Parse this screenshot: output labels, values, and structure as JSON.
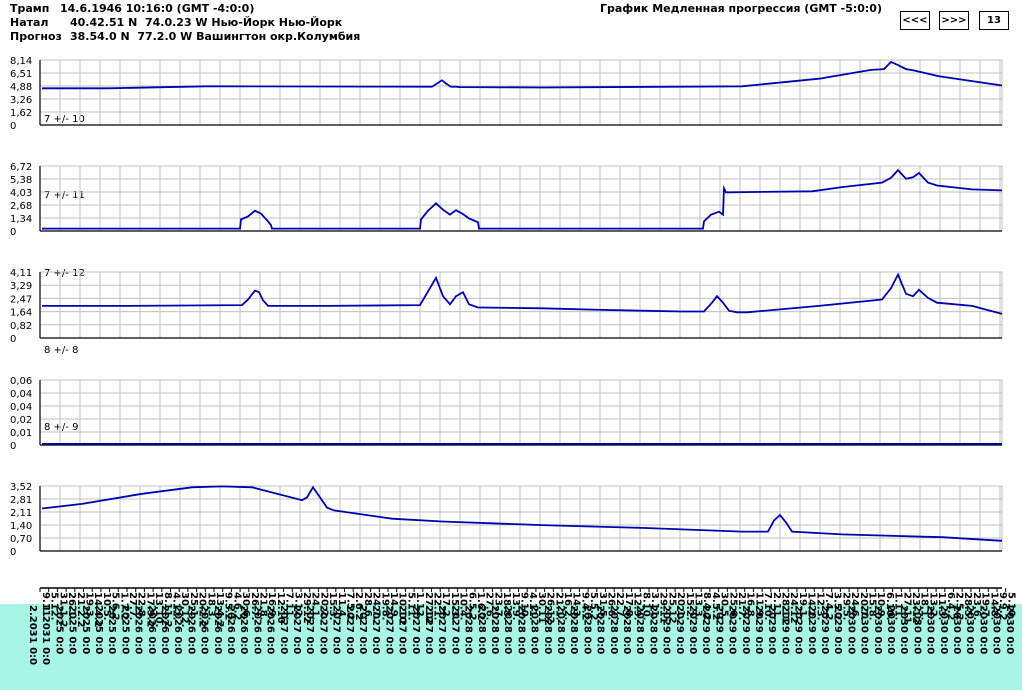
{
  "header": {
    "subject_label": "Трамп",
    "subject_value": "14.6.1946 10:16:0 (GMT -4:0:0)",
    "natal_label": "Натал",
    "natal_value": "40.42.51 N  74.0.23 W Нью-Йорк Нью-Йорк",
    "forecast_label": "Прогноз",
    "forecast_value": "38.54.0 N  77.2.0 W Вашингтон окр.Колумбия",
    "chart_title": "График Медленная прогрессия (GMT -5:0:0)"
  },
  "controls": {
    "prev_label": "<<<",
    "next_label": ">>>",
    "count_value": "13"
  },
  "colors": {
    "line": "#0000b0",
    "grid": "#c0c0c0",
    "axis": "#000000",
    "bottom_band": "#a8f5e6"
  },
  "chart_data": [
    {
      "type": "line",
      "panel_label": "7 +/- 10",
      "yticks": [
        "8,14",
        "6,51",
        "4,88",
        "3,26",
        "1,62",
        "0"
      ],
      "ylim": [
        0,
        8.14
      ],
      "x": [
        0,
        67,
        164,
        390,
        395,
        400,
        404,
        409,
        414,
        418,
        500,
        700,
        777,
        829,
        842,
        849,
        856,
        864,
        871,
        897,
        960
      ],
      "values": [
        4.6,
        4.6,
        4.85,
        4.8,
        5.2,
        5.6,
        5.2,
        4.8,
        4.8,
        4.75,
        4.7,
        4.85,
        5.8,
        6.9,
        7.0,
        7.9,
        7.5,
        7.0,
        6.85,
        6.1,
        4.95
      ]
    },
    {
      "type": "line",
      "panel_label": "7 +/- 11",
      "yticks": [
        "6,72",
        "5,38",
        "4,03",
        "2,68",
        "1,34",
        "0"
      ],
      "ylim": [
        0,
        6.72
      ],
      "x": [
        0,
        198,
        199,
        206,
        213,
        219,
        226,
        229,
        230,
        378,
        379,
        386,
        394,
        401,
        408,
        414,
        421,
        427,
        436,
        437,
        661,
        662,
        669,
        677,
        681,
        682,
        684,
        688,
        770,
        801,
        840,
        849,
        856,
        864,
        871,
        877,
        886,
        895,
        930,
        960
      ],
      "values": [
        0.25,
        0.25,
        1.2,
        1.5,
        2.1,
        1.8,
        1.0,
        0.6,
        0.25,
        0.25,
        1.2,
        2.1,
        2.85,
        2.2,
        1.7,
        2.15,
        1.75,
        1.3,
        0.9,
        0.25,
        0.25,
        1.0,
        1.7,
        2.0,
        1.7,
        4.4,
        4.0,
        4.0,
        4.1,
        4.55,
        5.0,
        5.5,
        6.3,
        5.4,
        5.55,
        6.0,
        5.0,
        4.7,
        4.3,
        4.2
      ]
    },
    {
      "type": "line",
      "panel_label": "7 +/- 12",
      "yticks": [
        "4,11",
        "3,29",
        "2,47",
        "1,64",
        "0,82",
        "0"
      ],
      "ylim": [
        0,
        4.11
      ],
      "x": [
        0,
        80,
        200,
        206,
        213,
        217,
        221,
        226,
        236,
        285,
        378,
        386,
        394,
        401,
        408,
        414,
        421,
        427,
        436,
        440,
        500,
        560,
        640,
        662,
        670,
        675,
        681,
        687,
        695,
        705,
        777,
        840,
        849,
        856,
        864,
        871,
        877,
        886,
        895,
        930,
        960
      ],
      "values": [
        2.0,
        2.0,
        2.05,
        2.4,
        2.95,
        2.85,
        2.35,
        2.0,
        2.0,
        2.0,
        2.05,
        2.9,
        3.75,
        2.6,
        2.1,
        2.6,
        2.85,
        2.1,
        1.9,
        1.9,
        1.85,
        1.75,
        1.65,
        1.65,
        2.2,
        2.6,
        2.2,
        1.7,
        1.6,
        1.6,
        2.0,
        2.4,
        3.1,
        3.95,
        2.75,
        2.6,
        3.0,
        2.5,
        2.2,
        2.0,
        1.5
      ]
    },
    {
      "type": "line",
      "panel_label": "8 +/- 8",
      "yticks": [],
      "ylim": [
        0,
        0.06
      ],
      "x": [],
      "values": []
    },
    {
      "type": "line",
      "panel_label": "8 +/- 9",
      "yticks": [
        "0,06",
        "0,04",
        "0,04",
        "0,02",
        "0,01",
        "0"
      ],
      "ylim": [
        0,
        0.06
      ],
      "x": [
        0,
        960
      ],
      "values": [
        0.001,
        0.001
      ]
    },
    {
      "type": "line",
      "panel_label": "",
      "yticks": [
        "3,52",
        "2,81",
        "2,11",
        "1,40",
        "0,70",
        "0"
      ],
      "ylim": [
        0,
        3.52
      ],
      "x": [
        0,
        40,
        100,
        150,
        180,
        210,
        260,
        265,
        271,
        278,
        285,
        292,
        350,
        400,
        500,
        600,
        700,
        726,
        732,
        738,
        744,
        750,
        800,
        900,
        960
      ],
      "values": [
        2.3,
        2.55,
        3.1,
        3.45,
        3.5,
        3.45,
        2.75,
        2.9,
        3.45,
        2.9,
        2.35,
        2.2,
        1.75,
        1.6,
        1.4,
        1.25,
        1.05,
        1.05,
        1.65,
        1.95,
        1.55,
        1.05,
        0.9,
        0.75,
        0.55
      ]
    }
  ],
  "x_axis": {
    "labels_row1": [
      "9.11.",
      "5.12.",
      "31.1.2",
      "26.1.",
      "21.2.2",
      "19.3.",
      "14.4.2",
      "10.5.",
      "5.6.2",
      "1.7.2",
      "27.7.",
      "22.8.",
      "17.9.2",
      "13.10.",
      "8.11.2",
      "4.12.",
      "30.12.",
      "25.1.",
      "20.2.2",
      "18.3.",
      "13.4.2",
      "9.5.2",
      "4.6.2",
      "30.6.",
      "26.7.",
      "21.8.",
      "16.9.",
      "12.10",
      "7.11.",
      "3.12.",
      "29.12",
      "24.1.",
      "20.2.",
      "15.3.",
      "11.4.",
      "7.5.2",
      "2.6.2",
      "28.6.",
      "24.7.",
      "19.8.",
      "14.9.",
      "10.10",
      "5.11.",
      "1.12.",
      "27.12",
      "22.1.",
      "17.2.",
      "15.3.",
      "10.4.",
      "6.5.2",
      "1.6.2",
      "27.6.",
      "23.7.",
      "18.8.",
      "13.9.",
      "9.10.",
      "4.11.",
      "30.11",
      "26.12",
      "21.1.",
      "16.2.",
      "14.3.",
      "9.4.2",
      "5.5.2",
      "31.5.",
      "26.6.",
      "22.7.",
      "17.8.",
      "12.9.",
      "8.10.",
      "3.11.",
      "29.11",
      "25.12",
      "20.1.",
      "15.2.",
      "13.3.",
      "8.4.2",
      "4.5.2",
      "30.5.",
      "25.6.",
      "21.7.",
      "16.8.",
      "11.9.",
      "7.10.",
      "2.11.",
      "28.11",
      "24.12",
      "19.1.",
      "14.2.",
      "12.3.",
      "7.4.2",
      "3.5.2",
      "29.5.",
      "24.6.",
      "20.7.",
      "15.8.",
      "10.9.",
      "6.10.",
      "1.11.",
      "27.11",
      "23.12",
      "18.1.",
      "13.2.",
      "11.3.",
      "6.4.2",
      "2.5.2",
      "28.5.",
      "23.6.",
      "19.7.",
      "14.8.",
      "9.9.2",
      "5.10.",
      "31.10",
      "26.11"
    ],
    "labels_row2": [
      "2.2031 0:0",
      "1.2031 0:0",
      "2025 0:0",
      "2025 0:0",
      "2025 0:0",
      "2025 0:0",
      "2025 0:0",
      "2025 0:0",
      "2026 0:0",
      "2026 0:0",
      "2026 0:0",
      "2026 0:0",
      "2026 0:0",
      "2026 0:0",
      "2026 0:0",
      "2026 0:0",
      "2026 0:0",
      "2026 0:0",
      "2026 0:0",
      "2027 0:0",
      "2027 0:0",
      "2027 0:0",
      "2027 0:0",
      "2027 0:0",
      "2027 0:0",
      "2027 0:0",
      "2027 0:0",
      "2027 0:0",
      "2027 0:0",
      "2027 0:0",
      "2027 0:0",
      "2027 0:0",
      "2027 0:0",
      "2028 0:0",
      "2028 0:0",
      "2028 0:0",
      "2028 0:0",
      "2028 0:0",
      "2028 0:0",
      "2028 0:0",
      "2028 0:0",
      "2028 0:0",
      "2028 0:0",
      "2028 0:0",
      "2028 0:0",
      "2028 0:0",
      "2028 0:0",
      "2028 0:0",
      "2029 0:0",
      "2029 0:0",
      "2029 0:0",
      "2029 0:0",
      "2029 0:0",
      "2029 0:0",
      "2029 0:0",
      "2029 0:0",
      "2029 0:0",
      "2029 0:0",
      "2029 0:0",
      "2029 0:0",
      "2029 0:0",
      "2029 0:0",
      "2030 0:0",
      "2030 0:0",
      "2030 0:0",
      "2030 0:0",
      "2030 0:0",
      "2030 0:0",
      "2030 0:0",
      "2030 0:0",
      "2030 0:0",
      "2030 0:0",
      "2030 0:0",
      "2030 0:0",
      "2030 0:0",
      "2030 0:0"
    ]
  }
}
